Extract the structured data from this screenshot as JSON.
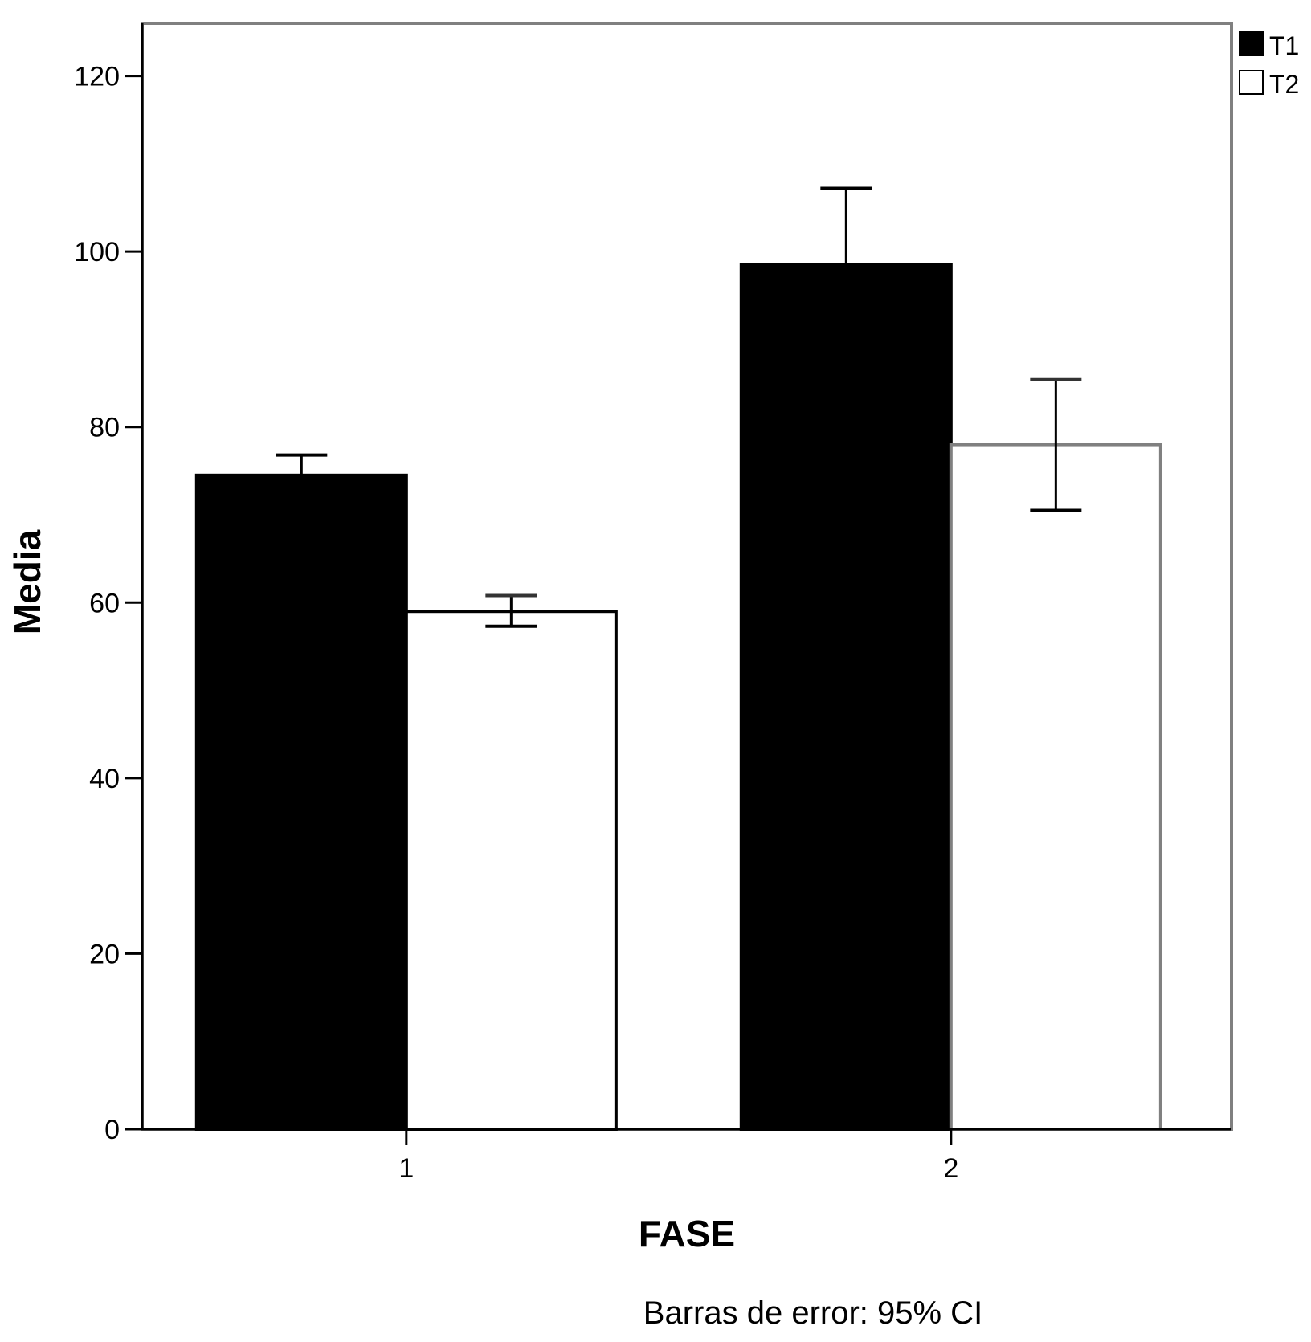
{
  "chart_data": {
    "type": "bar",
    "categories": [
      "1",
      "2"
    ],
    "series": [
      {
        "name": "T1",
        "color": "#000000",
        "values": [
          74.5,
          98.5
        ],
        "error_low": [
          72.5,
          98.5
        ],
        "error_high": [
          76.8,
          107.2
        ]
      },
      {
        "name": "T2",
        "color": "#ffffff",
        "values": [
          59.0,
          78.0
        ],
        "error_low": [
          57.3,
          70.5
        ],
        "error_high": [
          60.8,
          85.4
        ]
      }
    ],
    "xlabel": "FASE",
    "ylabel": "Media",
    "ylim": [
      0,
      126
    ],
    "yticks": [
      0,
      20,
      40,
      60,
      80,
      100,
      120
    ],
    "grid": false,
    "legend_position": "top-right",
    "footnote": "Barras de error: 95% CI"
  }
}
